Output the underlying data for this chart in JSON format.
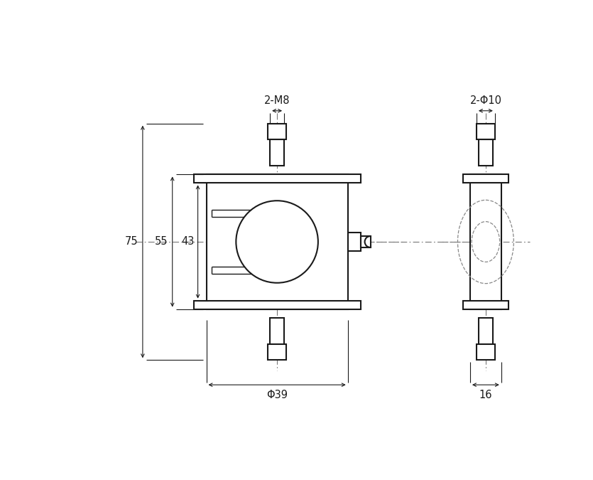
{
  "bg_color": "#ffffff",
  "line_color": "#1a1a1a",
  "dim_color": "#1a1a1a",
  "fig_width": 8.35,
  "fig_height": 6.75,
  "annotations": {
    "dim_2M8": "2-M8",
    "dim_2phi10": "2-Φ10",
    "dim_phi39": "Φ39",
    "dim_75": "75",
    "dim_55": "55",
    "dim_43": "43",
    "dim_16": "16"
  }
}
